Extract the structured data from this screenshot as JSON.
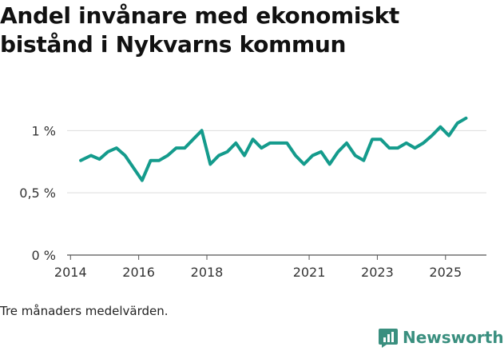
{
  "title": "Andel invånare med ekonomiskt bistånd i Nykvarns kommun",
  "footnote": "Tre månaders medelvärden.",
  "brand": {
    "name": "Newsworthy",
    "color": "#3a8f7f",
    "icon": "bar-chart-logo-icon"
  },
  "chart_data": {
    "type": "line",
    "title": "Andel invånare med ekonomiskt bistånd i Nykvarns kommun",
    "xlabel": "",
    "ylabel": "",
    "ylim": [
      0,
      1.15
    ],
    "y_ticks": [
      {
        "value": 0,
        "label": "0 %"
      },
      {
        "value": 0.5,
        "label": "0,5 %"
      },
      {
        "value": 1,
        "label": "1 %"
      }
    ],
    "x_ticks": [
      {
        "value": 2014,
        "label": "2014"
      },
      {
        "value": 2016,
        "label": "2016"
      },
      {
        "value": 2018,
        "label": "2018"
      },
      {
        "value": 2021,
        "label": "2021"
      },
      {
        "value": 2023,
        "label": "2023"
      },
      {
        "value": 2025,
        "label": "2025"
      }
    ],
    "xlim": [
      2013.9,
      2026.2
    ],
    "grid": "horizontal",
    "series": [
      {
        "color": "#149b8c",
        "points": [
          [
            2014.3,
            0.76
          ],
          [
            2014.6,
            0.8
          ],
          [
            2014.85,
            0.77
          ],
          [
            2015.1,
            0.83
          ],
          [
            2015.35,
            0.86
          ],
          [
            2015.6,
            0.8
          ],
          [
            2015.85,
            0.7
          ],
          [
            2016.1,
            0.6
          ],
          [
            2016.35,
            0.76
          ],
          [
            2016.6,
            0.76
          ],
          [
            2016.85,
            0.8
          ],
          [
            2017.1,
            0.86
          ],
          [
            2017.35,
            0.86
          ],
          [
            2017.6,
            0.93
          ],
          [
            2017.85,
            1.0
          ],
          [
            2018.1,
            0.73
          ],
          [
            2018.35,
            0.8
          ],
          [
            2018.6,
            0.83
          ],
          [
            2018.85,
            0.9
          ],
          [
            2019.1,
            0.8
          ],
          [
            2019.35,
            0.93
          ],
          [
            2019.6,
            0.86
          ],
          [
            2019.85,
            0.9
          ],
          [
            2020.1,
            0.9
          ],
          [
            2020.35,
            0.9
          ],
          [
            2020.6,
            0.8
          ],
          [
            2020.85,
            0.73
          ],
          [
            2021.1,
            0.8
          ],
          [
            2021.35,
            0.83
          ],
          [
            2021.6,
            0.73
          ],
          [
            2021.85,
            0.83
          ],
          [
            2022.1,
            0.9
          ],
          [
            2022.35,
            0.8
          ],
          [
            2022.6,
            0.76
          ],
          [
            2022.85,
            0.93
          ],
          [
            2023.1,
            0.93
          ],
          [
            2023.35,
            0.86
          ],
          [
            2023.6,
            0.86
          ],
          [
            2023.85,
            0.9
          ],
          [
            2024.1,
            0.86
          ],
          [
            2024.35,
            0.9
          ],
          [
            2024.6,
            0.96
          ],
          [
            2024.85,
            1.03
          ],
          [
            2025.1,
            0.96
          ],
          [
            2025.35,
            1.06
          ],
          [
            2025.6,
            1.1
          ]
        ]
      }
    ]
  }
}
